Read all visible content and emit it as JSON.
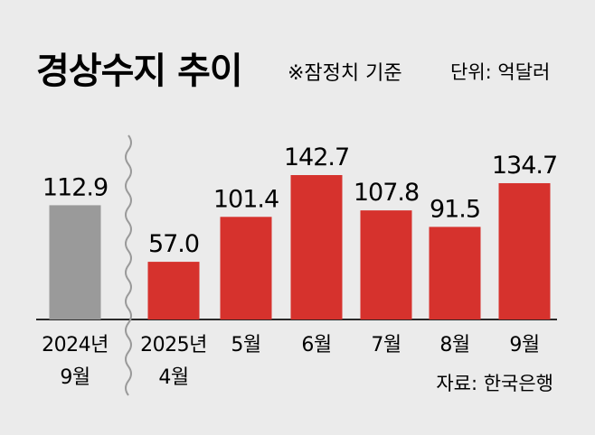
{
  "header": {
    "title": "경상수지 추이",
    "note": "※잠정치 기준",
    "unit": "단위: 억달러"
  },
  "source": "자료: 한국은행",
  "colors": {
    "background": "#ebebeb",
    "past_bar": "#9a9a9a",
    "current_bar": "#d6322d",
    "axis": "#2a2a2a"
  },
  "chart_data": {
    "type": "bar",
    "title": "경상수지 추이",
    "note": "※잠정치 기준",
    "unit": "단위: 억달러",
    "categories": [
      [
        "2024년",
        "9월"
      ],
      [
        "2025년",
        "4월"
      ],
      [
        "5월"
      ],
      [
        "6월"
      ],
      [
        "7월"
      ],
      [
        "8월"
      ],
      [
        "9월"
      ]
    ],
    "values": [
      112.9,
      57.0,
      101.4,
      142.7,
      107.8,
      91.5,
      134.7
    ],
    "value_labels": [
      "112.9",
      "57.0",
      "101.4",
      "142.7",
      "107.8",
      "91.5",
      "134.7"
    ],
    "highlight": [
      false,
      true,
      true,
      true,
      true,
      true,
      true
    ],
    "axis_break_after_index": 0,
    "ylim": [
      0,
      142.7
    ],
    "grid": false,
    "legend": "none"
  }
}
